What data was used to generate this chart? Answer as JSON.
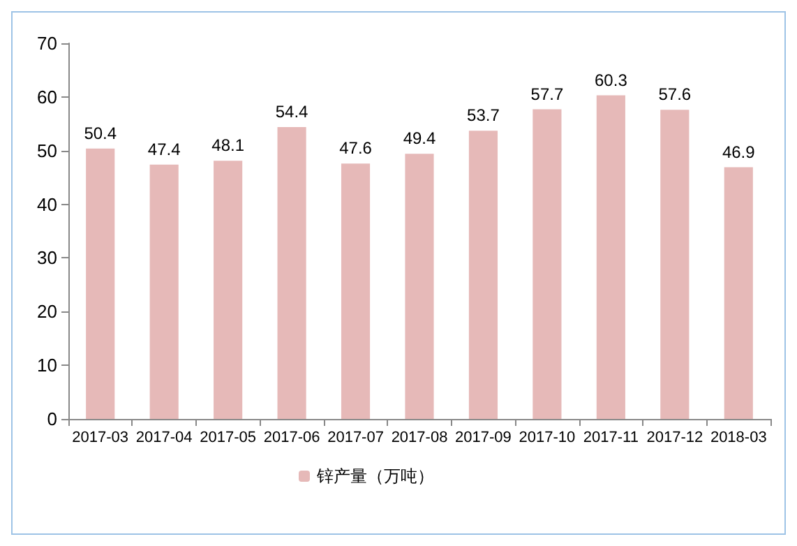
{
  "chart_data": {
    "type": "bar",
    "categories": [
      "2017-03",
      "2017-04",
      "2017-05",
      "2017-06",
      "2017-07",
      "2017-08",
      "2017-09",
      "2017-10",
      "2017-11",
      "2017-12",
      "2018-03"
    ],
    "series": [
      {
        "name": "锌产量（万吨）",
        "color": "#e6b9b8",
        "values": [
          50.4,
          47.4,
          48.1,
          54.4,
          47.6,
          49.4,
          53.7,
          57.7,
          60.3,
          57.6,
          46.9
        ]
      }
    ],
    "ylim": [
      0,
      70
    ],
    "yticks": [
      0,
      10,
      20,
      30,
      40,
      50,
      60,
      70
    ],
    "grid": false,
    "legend": "bottom left",
    "data_labels": true
  }
}
